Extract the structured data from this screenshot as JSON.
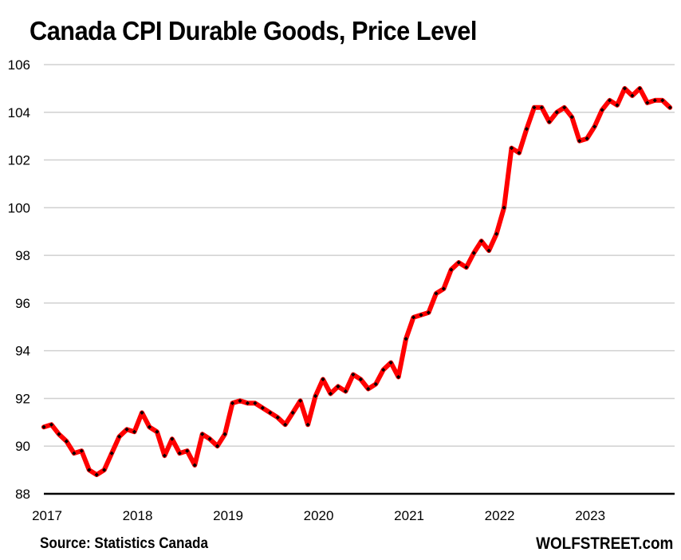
{
  "header": {
    "title": "Canada CPI Durable Goods, Price Level"
  },
  "footer": {
    "source": "Source: Statistics Canada",
    "brand": "WOLFSTREET.com"
  },
  "chart_data": {
    "type": "line",
    "title": "Canada CPI Durable Goods, Price Level",
    "xlabel": "",
    "ylabel": "",
    "ylim": [
      88,
      106
    ],
    "yticks": [
      "88",
      "90",
      "92",
      "94",
      "96",
      "98",
      "100",
      "102",
      "104",
      "106"
    ],
    "xticks": [
      "2017",
      "2018",
      "2019",
      "2020",
      "2021",
      "2022",
      "2023"
    ],
    "grid": true,
    "legend": "none",
    "line_color": "#ff0000",
    "marker_color": "#000000",
    "x_start": "2017-01",
    "frequency": "monthly",
    "series": [
      {
        "name": "CPI Durable Goods",
        "values": [
          90.8,
          90.9,
          90.5,
          90.2,
          89.7,
          89.8,
          89.0,
          88.8,
          89.0,
          89.7,
          90.4,
          90.7,
          90.6,
          91.4,
          90.8,
          90.6,
          89.6,
          90.3,
          89.7,
          89.8,
          89.2,
          90.5,
          90.3,
          90.0,
          90.5,
          91.8,
          91.9,
          91.8,
          91.8,
          91.6,
          91.4,
          91.2,
          90.9,
          91.4,
          91.9,
          90.9,
          92.1,
          92.8,
          92.2,
          92.5,
          92.3,
          93.0,
          92.8,
          92.4,
          92.6,
          93.2,
          93.5,
          92.9,
          94.5,
          95.4,
          95.5,
          95.6,
          96.4,
          96.6,
          97.4,
          97.7,
          97.5,
          98.1,
          98.6,
          98.2,
          98.9,
          100.0,
          102.5,
          102.3,
          103.3,
          104.2,
          104.2,
          103.6,
          104.0,
          104.2,
          103.8,
          102.8,
          102.9,
          103.4,
          104.1,
          104.5,
          104.3,
          105.0,
          104.7,
          105.0,
          104.4,
          104.5,
          104.5,
          104.2
        ]
      }
    ]
  }
}
